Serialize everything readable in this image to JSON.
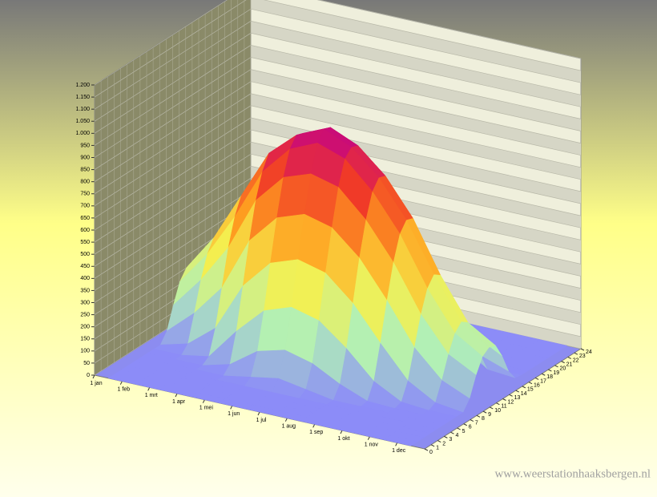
{
  "chart_data": {
    "type": "surface",
    "watermark": "www.weerstationhaaksbergen.nl",
    "categories": [
      "1 jan",
      "1 feb",
      "1 mrt",
      "1 apr",
      "1 mei",
      "1 jun",
      "1 jul",
      "1 aug",
      "1 sep",
      "1 okt",
      "1 nov",
      "1 dec"
    ],
    "hours": [
      0,
      1,
      2,
      3,
      4,
      5,
      6,
      7,
      8,
      9,
      10,
      11,
      12,
      13,
      14,
      15,
      16,
      17,
      18,
      19,
      20,
      21,
      22,
      23,
      24
    ],
    "values": [
      [
        0,
        0,
        0,
        0,
        0,
        0,
        0,
        0,
        0,
        40,
        130,
        210,
        250,
        240,
        170,
        80,
        15,
        0,
        0,
        0,
        0,
        0,
        0,
        0,
        0
      ],
      [
        0,
        0,
        0,
        0,
        0,
        0,
        0,
        0,
        30,
        140,
        260,
        350,
        400,
        390,
        320,
        210,
        90,
        10,
        0,
        0,
        0,
        0,
        0,
        0,
        0
      ],
      [
        0,
        0,
        0,
        0,
        0,
        0,
        0,
        20,
        120,
        270,
        420,
        530,
        600,
        590,
        510,
        380,
        230,
        90,
        10,
        0,
        0,
        0,
        0,
        0,
        0
      ],
      [
        0,
        0,
        0,
        0,
        0,
        0,
        30,
        150,
        320,
        490,
        640,
        740,
        800,
        790,
        710,
        570,
        400,
        220,
        70,
        5,
        0,
        0,
        0,
        0,
        0
      ],
      [
        0,
        0,
        0,
        0,
        0,
        20,
        110,
        260,
        440,
        610,
        760,
        860,
        900,
        890,
        810,
        680,
        510,
        330,
        160,
        40,
        0,
        0,
        0,
        0,
        0
      ],
      [
        0,
        0,
        0,
        0,
        0,
        40,
        140,
        300,
        480,
        650,
        800,
        910,
        950,
        940,
        860,
        730,
        560,
        380,
        200,
        60,
        5,
        0,
        0,
        0,
        0
      ],
      [
        0,
        0,
        0,
        0,
        0,
        20,
        110,
        270,
        450,
        620,
        770,
        870,
        900,
        890,
        820,
        690,
        520,
        340,
        170,
        50,
        0,
        0,
        0,
        0,
        0
      ],
      [
        0,
        0,
        0,
        0,
        0,
        0,
        50,
        180,
        350,
        520,
        660,
        760,
        800,
        790,
        710,
        580,
        410,
        240,
        90,
        10,
        0,
        0,
        0,
        0,
        0
      ],
      [
        0,
        0,
        0,
        0,
        0,
        0,
        5,
        70,
        210,
        370,
        510,
        610,
        650,
        640,
        560,
        420,
        260,
        110,
        15,
        0,
        0,
        0,
        0,
        0,
        0
      ],
      [
        0,
        0,
        0,
        0,
        0,
        0,
        0,
        10,
        80,
        200,
        320,
        410,
        450,
        430,
        350,
        230,
        100,
        15,
        0,
        0,
        0,
        0,
        0,
        0,
        0
      ],
      [
        0,
        0,
        0,
        0,
        0,
        0,
        0,
        0,
        15,
        90,
        180,
        250,
        280,
        260,
        190,
        90,
        15,
        0,
        0,
        0,
        0,
        0,
        0,
        0,
        0
      ],
      [
        0,
        0,
        0,
        0,
        0,
        0,
        0,
        0,
        0,
        40,
        120,
        180,
        200,
        190,
        130,
        50,
        5,
        0,
        0,
        0,
        0,
        0,
        0,
        0,
        0
      ]
    ],
    "colormap": [
      "#8c8cf8",
      "#b0f0b8",
      "#f4f050",
      "#ffa020",
      "#f03828",
      "#c0008c"
    ],
    "ylim": [
      0,
      1200
    ],
    "yticks": [
      0,
      50,
      100,
      150,
      200,
      250,
      300,
      350,
      400,
      450,
      500,
      550,
      600,
      650,
      700,
      750,
      800,
      850,
      900,
      950,
      {
        "value": 1000,
        "label": "1.000"
      },
      {
        "value": 1050,
        "label": "1.050"
      },
      {
        "value": 1100,
        "label": "1.100"
      },
      {
        "value": 1150,
        "label": "1.150"
      },
      {
        "value": 1200,
        "label": "1.200"
      }
    ],
    "grid": true
  }
}
